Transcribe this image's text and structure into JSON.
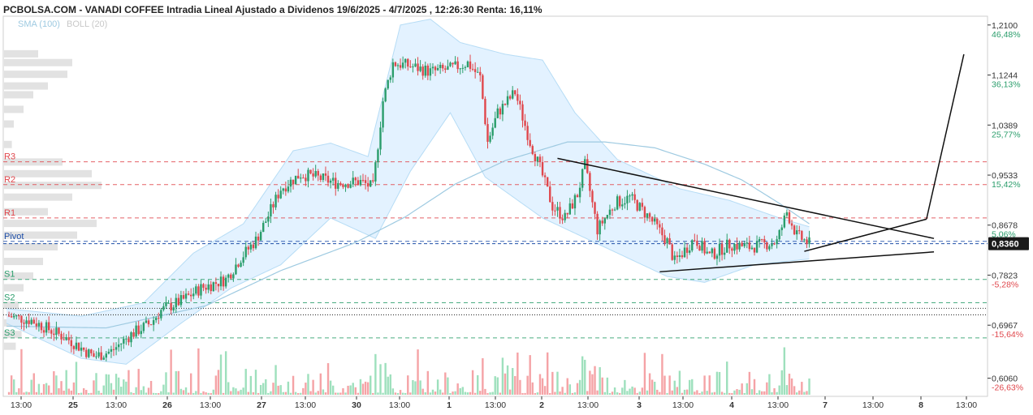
{
  "header": {
    "title": "PCBOLSA.COM - VANADI COFFEE Intradia Lineal Ajustado a Dividenos 19/6/2025 - 4/7/2025 , 12:26:30 Renta: 16,11%",
    "sma_label": "SMA (100)",
    "boll_label": "BOLL (20)"
  },
  "chart_data": {
    "type": "candlestick",
    "title": "PCBOLSA.COM - VANADI COFFEE Intradia Lineal Ajustado a Dividenos 19/6/2025 - 4/7/2025 , 12:26:30 Renta: 16,11%",
    "ylim": [
      0.575,
      1.225
    ],
    "y_ticks": [
      {
        "value": 1.21,
        "label": "1,2100",
        "pct": "46,48%",
        "dir": "pos"
      },
      {
        "value": 1.1244,
        "label": "1,1244",
        "pct": "36,13%",
        "dir": "pos"
      },
      {
        "value": 1.0389,
        "label": "1,0389",
        "pct": "25,77%",
        "dir": "pos"
      },
      {
        "value": 0.9533,
        "label": "0,9533",
        "pct": "15,42%",
        "dir": "pos"
      },
      {
        "value": 0.8678,
        "label": "0,8678",
        "pct": "5,06%",
        "dir": "pos"
      },
      {
        "value": 0.7823,
        "label": "0,7823",
        "pct": "-5,28%",
        "dir": "neg"
      },
      {
        "value": 0.6967,
        "label": "0,6967",
        "pct": "-15,64%",
        "dir": "neg"
      },
      {
        "value": 0.606,
        "label": "0,6060",
        "pct": "-26,63%",
        "dir": "neg"
      }
    ],
    "x_ticks": [
      "13:00",
      "25",
      "13:00",
      "26",
      "13:00",
      "27",
      "13:00",
      "30",
      "13:00",
      "1",
      "13:00",
      "2",
      "13:00",
      "3",
      "13:00",
      "4",
      "13:00",
      "7",
      "13:00",
      "8",
      "13:00"
    ],
    "last_price": {
      "value": 0.836,
      "label": "0,8360"
    },
    "reference_line": 0.7144,
    "pivot_levels": [
      {
        "name": "R3",
        "value": 0.976,
        "color": "#e0474c"
      },
      {
        "name": "R2",
        "value": 0.937,
        "color": "#e0474c"
      },
      {
        "name": "R1",
        "value": 0.88,
        "color": "#e0474c"
      },
      {
        "name": "Pivot",
        "value": 0.84,
        "color": "#1f4fa8"
      },
      {
        "name": "S1",
        "value": 0.775,
        "color": "#2a9d6b"
      },
      {
        "name": "S2",
        "value": 0.735,
        "color": "#2a9d6b"
      },
      {
        "name": "S3",
        "value": 0.675,
        "color": "#2a9d6b"
      }
    ],
    "colors": {
      "up": "#2a9d6b",
      "down": "#e0474c",
      "sma": "#9ecae1",
      "boll_fill": "#dcefff",
      "boll_line": "#b6dcf5",
      "volume_up": "#9ee0bd",
      "volume_down": "#f5a3a6",
      "volume_profile": "#e2e2e2"
    },
    "close_path": [
      {
        "x": 0,
        "y": 0.713
      },
      {
        "x": 10,
        "y": 0.705
      },
      {
        "x": 25,
        "y": 0.672
      },
      {
        "x": 35,
        "y": 0.643
      },
      {
        "x": 42,
        "y": 0.652
      },
      {
        "x": 50,
        "y": 0.681
      },
      {
        "x": 58,
        "y": 0.701
      },
      {
        "x": 62,
        "y": 0.722
      },
      {
        "x": 70,
        "y": 0.738
      },
      {
        "x": 78,
        "y": 0.76
      },
      {
        "x": 88,
        "y": 0.775
      },
      {
        "x": 94,
        "y": 0.812
      },
      {
        "x": 100,
        "y": 0.842
      },
      {
        "x": 104,
        "y": 0.875
      },
      {
        "x": 110,
        "y": 0.93
      },
      {
        "x": 118,
        "y": 0.955
      },
      {
        "x": 124,
        "y": 0.95
      },
      {
        "x": 132,
        "y": 0.94
      },
      {
        "x": 142,
        "y": 0.942
      },
      {
        "x": 147,
        "y": 0.932
      },
      {
        "x": 151,
        "y": 1.08
      },
      {
        "x": 155,
        "y": 1.145
      },
      {
        "x": 162,
        "y": 1.14
      },
      {
        "x": 170,
        "y": 1.13
      },
      {
        "x": 178,
        "y": 1.135
      },
      {
        "x": 185,
        "y": 1.145
      },
      {
        "x": 190,
        "y": 1.12
      },
      {
        "x": 193,
        "y": 1.01
      },
      {
        "x": 197,
        "y": 1.06
      },
      {
        "x": 204,
        "y": 1.095
      },
      {
        "x": 210,
        "y": 1.01
      },
      {
        "x": 214,
        "y": 0.965
      },
      {
        "x": 219,
        "y": 0.9
      },
      {
        "x": 224,
        "y": 0.88
      },
      {
        "x": 229,
        "y": 0.92
      },
      {
        "x": 232,
        "y": 0.97
      },
      {
        "x": 237,
        "y": 0.86
      },
      {
        "x": 244,
        "y": 0.905
      },
      {
        "x": 250,
        "y": 0.915
      },
      {
        "x": 258,
        "y": 0.88
      },
      {
        "x": 265,
        "y": 0.84
      },
      {
        "x": 268,
        "y": 0.805
      },
      {
        "x": 276,
        "y": 0.845
      },
      {
        "x": 282,
        "y": 0.815
      },
      {
        "x": 290,
        "y": 0.835
      },
      {
        "x": 298,
        "y": 0.83
      },
      {
        "x": 304,
        "y": 0.835
      },
      {
        "x": 309,
        "y": 0.84
      },
      {
        "x": 313,
        "y": 0.89
      },
      {
        "x": 317,
        "y": 0.85
      },
      {
        "x": 322,
        "y": 0.836
      }
    ],
    "sma_path": [
      {
        "x": 0,
        "y": 0.695
      },
      {
        "x": 40,
        "y": 0.692
      },
      {
        "x": 80,
        "y": 0.73
      },
      {
        "x": 110,
        "y": 0.79
      },
      {
        "x": 140,
        "y": 0.838
      },
      {
        "x": 160,
        "y": 0.882
      },
      {
        "x": 180,
        "y": 0.938
      },
      {
        "x": 200,
        "y": 0.978
      },
      {
        "x": 225,
        "y": 1.01
      },
      {
        "x": 240,
        "y": 1.01
      },
      {
        "x": 260,
        "y": 1.0
      },
      {
        "x": 280,
        "y": 0.972
      },
      {
        "x": 295,
        "y": 0.945
      },
      {
        "x": 310,
        "y": 0.905
      },
      {
        "x": 322,
        "y": 0.87
      }
    ],
    "boll_upper": [
      {
        "x": 0,
        "y": 0.725
      },
      {
        "x": 30,
        "y": 0.712
      },
      {
        "x": 55,
        "y": 0.735
      },
      {
        "x": 75,
        "y": 0.82
      },
      {
        "x": 95,
        "y": 0.87
      },
      {
        "x": 115,
        "y": 0.995
      },
      {
        "x": 130,
        "y": 1.008
      },
      {
        "x": 145,
        "y": 0.985
      },
      {
        "x": 158,
        "y": 1.21
      },
      {
        "x": 170,
        "y": 1.22
      },
      {
        "x": 182,
        "y": 1.18
      },
      {
        "x": 200,
        "y": 1.16
      },
      {
        "x": 215,
        "y": 1.15
      },
      {
        "x": 228,
        "y": 1.06
      },
      {
        "x": 245,
        "y": 0.98
      },
      {
        "x": 270,
        "y": 0.93
      },
      {
        "x": 290,
        "y": 0.91
      },
      {
        "x": 310,
        "y": 0.88
      },
      {
        "x": 322,
        "y": 0.865
      }
    ],
    "boll_lower": [
      {
        "x": 0,
        "y": 0.7
      },
      {
        "x": 30,
        "y": 0.64
      },
      {
        "x": 48,
        "y": 0.63
      },
      {
        "x": 70,
        "y": 0.7
      },
      {
        "x": 90,
        "y": 0.76
      },
      {
        "x": 110,
        "y": 0.8
      },
      {
        "x": 130,
        "y": 0.88
      },
      {
        "x": 148,
        "y": 0.845
      },
      {
        "x": 162,
        "y": 0.96
      },
      {
        "x": 178,
        "y": 1.06
      },
      {
        "x": 192,
        "y": 0.95
      },
      {
        "x": 215,
        "y": 0.88
      },
      {
        "x": 240,
        "y": 0.83
      },
      {
        "x": 265,
        "y": 0.78
      },
      {
        "x": 280,
        "y": 0.77
      },
      {
        "x": 300,
        "y": 0.8
      },
      {
        "x": 322,
        "y": 0.81
      }
    ],
    "trendlines": [
      {
        "x1": 221,
        "y1": 0.982,
        "x2": 372,
        "y2": 0.845
      },
      {
        "x1": 262,
        "y1": 0.788,
        "x2": 372,
        "y2": 0.822
      },
      {
        "x1": 320,
        "y1": 0.823,
        "x2": 369,
        "y2": 0.878
      },
      {
        "x1": 369,
        "y1": 0.878,
        "x2": 384,
        "y2": 1.16
      }
    ],
    "volume_profile": [
      {
        "y": 1.16,
        "v": 0.35
      },
      {
        "y": 1.145,
        "v": 0.7
      },
      {
        "y": 1.125,
        "v": 0.65
      },
      {
        "y": 1.105,
        "v": 0.45
      },
      {
        "y": 1.09,
        "v": 0.3
      },
      {
        "y": 1.065,
        "v": 0.2
      },
      {
        "y": 1.04,
        "v": 0.1
      },
      {
        "y": 1.005,
        "v": 0.08
      },
      {
        "y": 0.975,
        "v": 0.6
      },
      {
        "y": 0.955,
        "v": 0.9
      },
      {
        "y": 0.935,
        "v": 1.0
      },
      {
        "y": 0.915,
        "v": 0.7
      },
      {
        "y": 0.89,
        "v": 0.45
      },
      {
        "y": 0.87,
        "v": 0.95
      },
      {
        "y": 0.85,
        "v": 0.75
      },
      {
        "y": 0.83,
        "v": 0.55
      },
      {
        "y": 0.805,
        "v": 0.4
      },
      {
        "y": 0.78,
        "v": 0.3
      },
      {
        "y": 0.76,
        "v": 0.2
      },
      {
        "y": 0.73,
        "v": 0.15
      },
      {
        "y": 0.7,
        "v": 0.25
      },
      {
        "y": 0.68,
        "v": 0.18
      },
      {
        "y": 0.66,
        "v": 0.12
      }
    ]
  }
}
